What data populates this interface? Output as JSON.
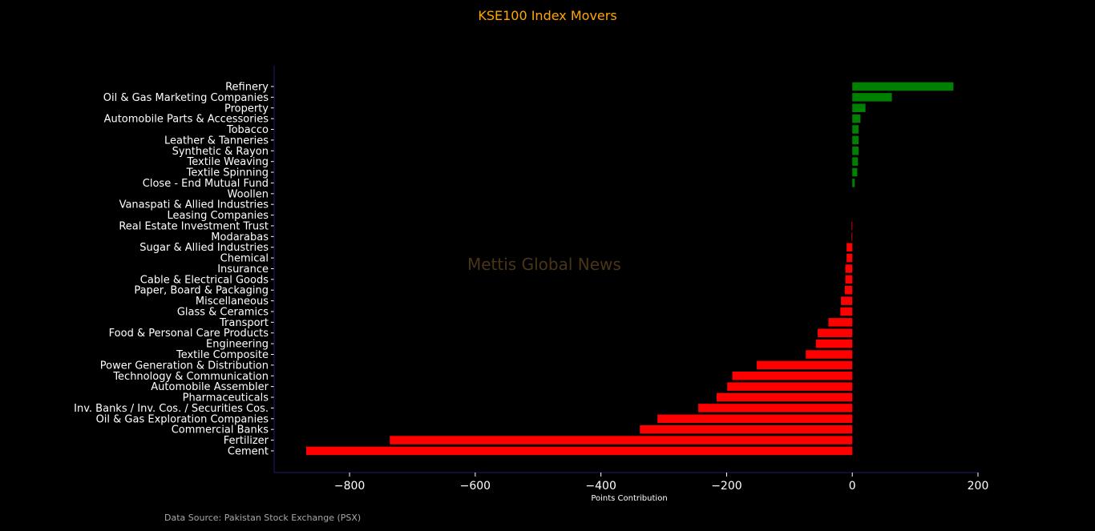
{
  "chart_data": {
    "type": "bar",
    "orientation": "horizontal",
    "title": "KSE100 Index Movers",
    "xlabel": "Points Contribution",
    "ylabel": "",
    "xlim": [
      -920,
      200
    ],
    "xticks": [
      -800,
      -600,
      -400,
      -200,
      0,
      200
    ],
    "xtick_labels": [
      "−800",
      "−600",
      "−400",
      "−200",
      "0",
      "200"
    ],
    "grid": false,
    "categories": [
      "Refinery",
      "Oil & Gas Marketing Companies",
      "Property",
      "Automobile Parts & Accessories",
      "Tobacco",
      "Leather & Tanneries",
      "Synthetic & Rayon",
      "Textile Weaving",
      "Textile Spinning",
      "Close - End Mutual Fund",
      "Woollen",
      "Vanaspati & Allied Industries",
      "Leasing Companies",
      "Real Estate Investment Trust",
      "Modarabas",
      "Sugar & Allied Industries",
      "Chemical",
      "Insurance",
      "Cable & Electrical Goods",
      "Paper, Board & Packaging",
      "Miscellaneous",
      "Glass & Ceramics",
      "Transport",
      "Food & Personal Care Products",
      "Engineering",
      "Textile Composite",
      "Power Generation & Distribution",
      "Technology & Communication",
      "Automobile Assembler",
      "Pharmaceuticals",
      "Inv. Banks / Inv. Cos. / Securities Cos.",
      "Oil & Gas Exploration Companies",
      "Commercial Banks",
      "Fertilizer",
      "Cement"
    ],
    "values": [
      161,
      63,
      21,
      13,
      10,
      10,
      10,
      9,
      8,
      4,
      0,
      0,
      0,
      -1,
      -1,
      -9,
      -9,
      -11,
      -11,
      -12,
      -18,
      -19,
      -38,
      -55,
      -58,
      -74,
      -152,
      -191,
      -199,
      -216,
      -245,
      -310,
      -338,
      -736,
      -869
    ],
    "positive_color": "#008000",
    "negative_color": "#FF0000"
  },
  "watermark": "Mettis Global News",
  "source_note": "Data Source: Pakistan Stock Exchange (PSX)",
  "colors": {
    "background": "#000000",
    "title": "#FFA500",
    "axis_spine": "#1f1a6e",
    "text": "#ffffff"
  }
}
